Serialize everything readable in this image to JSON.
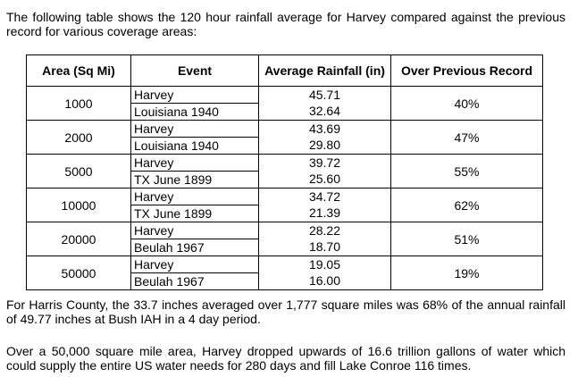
{
  "intro": "The following table shows the 120 hour rainfall average for Harvey compared against the previous record for various coverage areas:",
  "table": {
    "headers": {
      "area": "Area (Sq Mi)",
      "event": "Event",
      "avg": "Average Rainfall (in)",
      "over": "Over Previous Record"
    },
    "rows": [
      {
        "area": "1000",
        "event1": "Harvey",
        "event2": "Louisiana 1940",
        "avg1": "45.71",
        "avg2": "32.64",
        "over": "40%"
      },
      {
        "area": "2000",
        "event1": "Harvey",
        "event2": "Louisiana 1940",
        "avg1": "43.69",
        "avg2": "29.80",
        "over": "47%"
      },
      {
        "area": "5000",
        "event1": "Harvey",
        "event2": "TX June 1899",
        "avg1": "39.72",
        "avg2": "25.60",
        "over": "55%"
      },
      {
        "area": "10000",
        "event1": "Harvey",
        "event2": "TX June 1899",
        "avg1": "34.72",
        "avg2": "21.39",
        "over": "62%"
      },
      {
        "area": "20000",
        "event1": "Harvey",
        "event2": "Beulah 1967",
        "avg1": "28.22",
        "avg2": "18.70",
        "over": "51%"
      },
      {
        "area": "50000",
        "event1": "Harvey",
        "event2": "Beulah 1967",
        "avg1": "19.05",
        "avg2": "16.00",
        "over": "19%"
      }
    ]
  },
  "harris": "For Harris County, the 33.7 inches averaged over 1,777 square miles was 68% of the annual rainfall of 49.77 inches at Bush IAH in a 4 day period.",
  "over50k": "Over a 50,000 square mile area, Harvey dropped upwards of 16.6 trillion gallons of water which could supply the entire US water needs for 280 days and fill Lake Conroe 116 times."
}
